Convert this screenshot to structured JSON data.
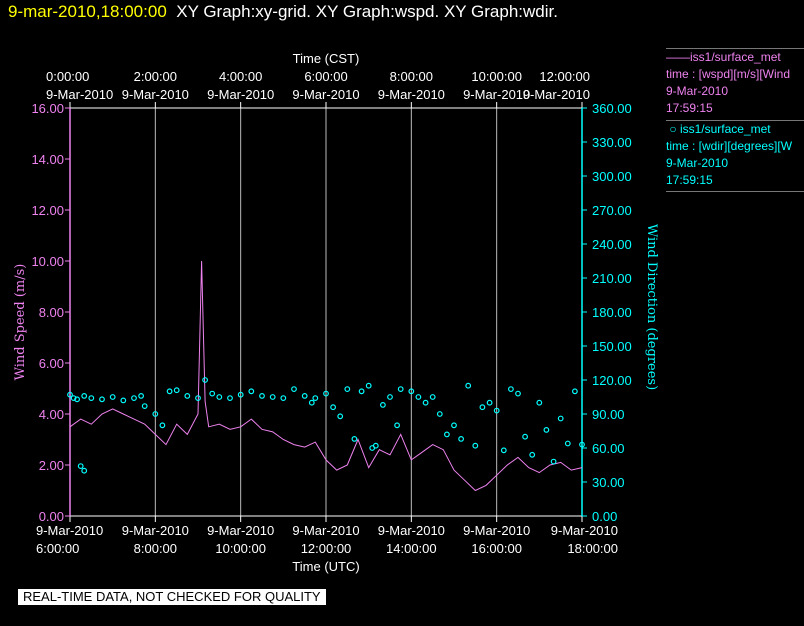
{
  "header": {
    "timestamp": "9-mar-2010,18:00:00",
    "graphs": "XY Graph:xy-grid.  XY Graph:wspd.  XY Graph:wdir."
  },
  "legend": {
    "wspd": {
      "symbol": "——",
      "source": "iss1/surface_met",
      "variable": "time : [wspd][m/s][Wind",
      "date": "9-Mar-2010",
      "time": "17:59:15"
    },
    "wdir": {
      "symbol": "○",
      "source": "iss1/surface_met",
      "variable": "time : [wdir][degrees][W",
      "date": "9-Mar-2010",
      "time": "17:59:15"
    }
  },
  "footer": {
    "note": "REAL-TIME DATA, NOT CHECKED FOR QUALITY"
  },
  "chart_data": {
    "type": "line",
    "top_axis": {
      "label": "Time (CST)",
      "ticks": [
        {
          "date": "9-Mar-2010",
          "time": "0:00:00"
        },
        {
          "date": "9-Mar-2010",
          "time": "2:00:00"
        },
        {
          "date": "9-Mar-2010",
          "time": "4:00:00"
        },
        {
          "date": "9-Mar-2010",
          "time": "6:00:00"
        },
        {
          "date": "9-Mar-2010",
          "time": "8:00:00"
        },
        {
          "date": "9-Mar-2010",
          "time": "10:00:00"
        },
        {
          "date": "9-Mar-2010",
          "time": "12:00:00"
        }
      ]
    },
    "bottom_axis": {
      "label": "Time (UTC)",
      "range": [
        "2010-03-09T06:00:00Z",
        "2010-03-09T18:00:00Z"
      ],
      "ticks": [
        {
          "date": "9-Mar-2010",
          "time": "6:00:00"
        },
        {
          "date": "9-Mar-2010",
          "time": "8:00:00"
        },
        {
          "date": "9-Mar-2010",
          "time": "10:00:00"
        },
        {
          "date": "9-Mar-2010",
          "time": "12:00:00"
        },
        {
          "date": "9-Mar-2010",
          "time": "14:00:00"
        },
        {
          "date": "9-Mar-2010",
          "time": "16:00:00"
        },
        {
          "date": "9-Mar-2010",
          "time": "18:00:00"
        }
      ]
    },
    "y_left": {
      "label": "Wind Speed (m/s)",
      "range": [
        0,
        16
      ],
      "ticks": [
        "0.00",
        "2.00",
        "4.00",
        "6.00",
        "8.00",
        "10.00",
        "12.00",
        "14.00",
        "16.00"
      ],
      "color": "#ee82ee"
    },
    "y_right": {
      "label": "Wind Direction (degrees)",
      "range": [
        0,
        360
      ],
      "ticks": [
        "0.00",
        "30.00",
        "60.00",
        "90.00",
        "120.00",
        "150.00",
        "180.00",
        "210.00",
        "240.00",
        "270.00",
        "300.00",
        "330.00",
        "360.00"
      ],
      "color": "#00ffff"
    },
    "grid": "vertical",
    "colors": {
      "axis": "#ffffff",
      "wspd": "#ee82ee",
      "wdir": "#00ffff"
    },
    "series": [
      {
        "name": "iss1/surface_met",
        "variable": "wspd",
        "style": "line",
        "axis": "left",
        "time_utc": [
          "06:00",
          "06:15",
          "06:30",
          "06:45",
          "07:00",
          "07:15",
          "07:30",
          "07:45",
          "08:00",
          "08:15",
          "08:30",
          "08:45",
          "09:00",
          "09:05",
          "09:10",
          "09:15",
          "09:30",
          "09:45",
          "10:00",
          "10:15",
          "10:30",
          "10:45",
          "11:00",
          "11:15",
          "11:30",
          "11:45",
          "12:00",
          "12:15",
          "12:30",
          "12:45",
          "13:00",
          "13:15",
          "13:30",
          "13:45",
          "14:00",
          "14:15",
          "14:30",
          "14:45",
          "15:00",
          "15:15",
          "15:30",
          "15:45",
          "16:00",
          "16:15",
          "16:30",
          "16:45",
          "17:00",
          "17:15",
          "17:30",
          "17:45",
          "18:00"
        ],
        "values": [
          3.5,
          3.8,
          3.6,
          4.0,
          4.2,
          4.0,
          3.8,
          3.6,
          3.2,
          2.8,
          3.6,
          3.2,
          4.0,
          10.0,
          4.5,
          3.5,
          3.6,
          3.4,
          3.5,
          3.8,
          3.4,
          3.3,
          3.0,
          2.8,
          2.7,
          2.9,
          2.2,
          1.8,
          2.0,
          3.0,
          1.9,
          2.6,
          2.4,
          3.2,
          2.2,
          2.5,
          2.8,
          2.6,
          1.8,
          1.4,
          1.0,
          1.2,
          1.6,
          2.0,
          2.3,
          1.9,
          1.7,
          2.0,
          2.1,
          1.8,
          1.9
        ]
      },
      {
        "name": "iss1/surface_met",
        "variable": "wdir",
        "style": "points",
        "axis": "right",
        "time_utc": [
          "06:00",
          "06:05",
          "06:10",
          "06:20",
          "06:30",
          "06:45",
          "07:00",
          "07:15",
          "07:30",
          "07:40",
          "07:45",
          "08:00",
          "08:10",
          "08:20",
          "08:30",
          "08:45",
          "09:00",
          "09:10",
          "09:20",
          "09:30",
          "09:45",
          "10:00",
          "10:15",
          "10:30",
          "10:45",
          "11:00",
          "11:15",
          "11:30",
          "11:40",
          "11:45",
          "12:00",
          "12:10",
          "12:20",
          "12:30",
          "12:40",
          "12:50",
          "13:00",
          "13:05",
          "13:10",
          "13:20",
          "13:30",
          "13:40",
          "13:45",
          "14:00",
          "14:10",
          "14:20",
          "14:30",
          "14:40",
          "14:50",
          "15:00",
          "15:10",
          "15:20",
          "15:30",
          "15:40",
          "15:50",
          "16:00",
          "16:10",
          "16:20",
          "16:30",
          "16:40",
          "16:50",
          "17:00",
          "17:10",
          "17:20",
          "17:30",
          "17:40",
          "17:50",
          "18:00",
          "06:15",
          "06:20"
        ],
        "values": [
          107,
          104,
          103,
          106,
          104,
          103,
          105,
          102,
          104,
          106,
          97,
          90,
          80,
          110,
          111,
          106,
          104,
          120,
          108,
          105,
          104,
          107,
          110,
          106,
          105,
          104,
          112,
          106,
          100,
          104,
          108,
          96,
          88,
          112,
          68,
          110,
          115,
          60,
          62,
          98,
          105,
          80,
          112,
          110,
          105,
          100,
          105,
          90,
          72,
          80,
          68,
          115,
          62,
          96,
          100,
          93,
          58,
          112,
          108,
          70,
          54,
          100,
          76,
          48,
          86,
          64,
          110,
          63,
          44,
          40
        ]
      }
    ]
  }
}
